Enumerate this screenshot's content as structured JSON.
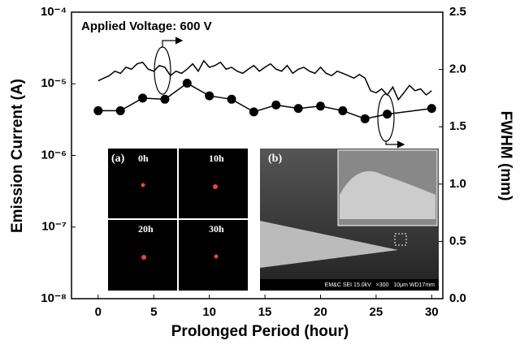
{
  "chart_data": {
    "type": "line",
    "x_label": "Prolonged Period (hour)",
    "y_label": "Emission Current (A)",
    "y2_label": "FWHM (mm)",
    "annotation": "Applied Voltage: 600 V",
    "xlim": [
      -2.4,
      31
    ],
    "xticks": [
      0,
      5,
      10,
      15,
      20,
      25,
      30
    ],
    "ylim": [
      1e-08,
      0.0001
    ],
    "log_y": true,
    "yticks": [
      {
        "value": 1e-08,
        "label": "10⁻⁸"
      },
      {
        "value": 1e-07,
        "label": "10⁻⁷"
      },
      {
        "value": 1e-06,
        "label": "10⁻⁶"
      },
      {
        "value": 1e-05,
        "label": "10⁻⁵"
      },
      {
        "value": 0.0001,
        "label": "10⁻⁴"
      }
    ],
    "y2lim": [
      0,
      2.5
    ],
    "y2ticks": [
      {
        "value": 0,
        "label": "0.0"
      },
      0.5,
      {
        "value": 1,
        "label": "1.0"
      },
      1.5,
      {
        "value": 2,
        "label": "2.0"
      },
      2.5
    ],
    "series": [
      {
        "color": "#000000",
        "marker": false,
        "axis": "y",
        "x": [
          0,
          0.5,
          1,
          1.5,
          2,
          2.5,
          3,
          3.5,
          4,
          4.5,
          5,
          5.5,
          6,
          6.5,
          7,
          7.5,
          8,
          8.5,
          9,
          9.5,
          10,
          10.5,
          11,
          11.5,
          12,
          12.5,
          13,
          13.5,
          14,
          14.5,
          15,
          15.5,
          16,
          16.5,
          17,
          17.5,
          18,
          18.5,
          19,
          19.5,
          20,
          20.5,
          21,
          21.5,
          22,
          22.5,
          23,
          23.5,
          24,
          24.5,
          25,
          25.5,
          26,
          26.5,
          27,
          27.5,
          28,
          28.5,
          29,
          29.5,
          30
        ],
        "values": [
          1.1e-05,
          1.2e-05,
          1.3e-05,
          1.5e-05,
          1.4e-05,
          1.7e-05,
          1.6e-05,
          1.9e-05,
          2e-05,
          1.6e-05,
          1.5e-05,
          1.8e-05,
          1.7e-05,
          1.3e-05,
          1.5e-05,
          1.4e-05,
          1.6e-05,
          1.9e-05,
          1.5e-05,
          2.1e-05,
          1.7e-05,
          1.8e-05,
          2e-05,
          1.6e-05,
          1.7e-05,
          1.5e-05,
          1.4e-05,
          1.6e-05,
          1.8e-05,
          1.5e-05,
          1.7e-05,
          1.9e-05,
          1.6e-05,
          1.5e-05,
          1.8e-05,
          1.4e-05,
          1.6e-05,
          1.7e-05,
          1.5e-05,
          1.4e-05,
          1.7e-05,
          1.4e-05,
          1.3e-05,
          1.5e-05,
          1.4e-05,
          1.3e-05,
          1.2e-05,
          1.35e-05,
          1.2e-05,
          8e-06,
          7.5e-06,
          8.5e-06,
          7e-06,
          9e-06,
          6e-06,
          7.5e-06,
          9.5e-06,
          8e-06,
          8.5e-06,
          7e-06,
          8e-06
        ]
      },
      {
        "color": "#000000",
        "marker": true,
        "axis": "y2",
        "x": [
          0,
          2,
          4,
          6,
          8,
          10,
          12,
          14,
          16,
          18,
          20,
          22,
          24,
          26,
          30
        ],
        "values": [
          1.64,
          1.64,
          1.75,
          1.74,
          1.88,
          1.77,
          1.74,
          1.63,
          1.69,
          1.66,
          1.68,
          1.64,
          1.57,
          1.61,
          1.66
        ]
      }
    ],
    "inset_a": {
      "label": "(a)",
      "frames": [
        "0h",
        "10h",
        "20h",
        "30h"
      ]
    },
    "inset_b": {
      "label": "(b)",
      "caption": "EM&C SEI 15.0kV   ×300   10μm WD17mm"
    }
  }
}
